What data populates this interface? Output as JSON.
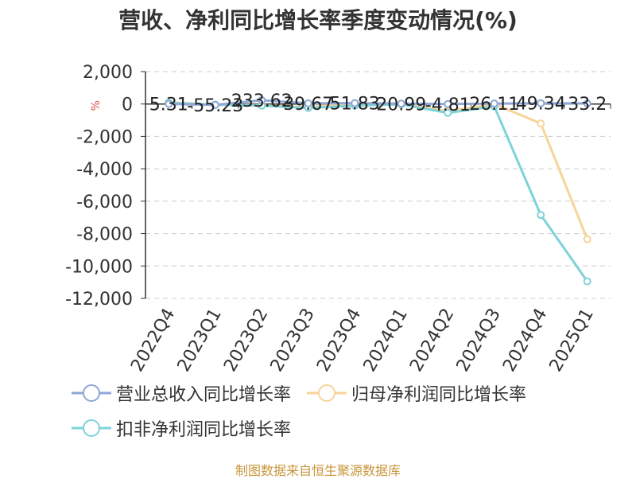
{
  "title": "营收、净利同比增长率季度变动情况(%)",
  "footer": "制图数据来自恒生聚源数据库",
  "chart_data": {
    "type": "line",
    "title": "营收、净利同比增长率季度变动情况(%)",
    "ylabel": "%",
    "ylim": [
      -12000,
      2000
    ],
    "yticks": [
      2000,
      0,
      -2000,
      -4000,
      -6000,
      -8000,
      -10000,
      -12000
    ],
    "ytick_labels": [
      "2,000",
      "0",
      "-2,000",
      "-4,000",
      "-6,000",
      "-8,000",
      "-10,000",
      "-12,000"
    ],
    "grid": true,
    "legend_position": "bottom",
    "categories": [
      "2022Q4",
      "2023Q1",
      "2023Q2",
      "2023Q3",
      "2023Q4",
      "2024Q1",
      "2024Q2",
      "2024Q3",
      "2024Q4",
      "2025Q1"
    ],
    "series": [
      {
        "name": "营业总收入同比增长率",
        "color": "#8fa8d8",
        "values": [
          5.31,
          -55.23,
          233.62,
          39.67,
          51.83,
          20.99,
          -4.81,
          26.11,
          49.34,
          33.2
        ],
        "labels": [
          "5.31",
          "-55.23",
          "233.62",
          "39.67",
          "51.83",
          "20.99",
          "-4.81",
          "26.11",
          "49.34",
          "33.2"
        ]
      },
      {
        "name": "归母净利润同比增长率",
        "color": "#f7d49a",
        "values": [
          100,
          -50,
          -80,
          -200,
          60,
          30,
          -450,
          0,
          -1200,
          -8350
        ]
      },
      {
        "name": "扣非净利润同比增长率",
        "color": "#7fd3d8",
        "values": [
          80,
          -40,
          -100,
          -250,
          -100,
          -20,
          -550,
          -150,
          -6850,
          -10950
        ]
      }
    ]
  }
}
